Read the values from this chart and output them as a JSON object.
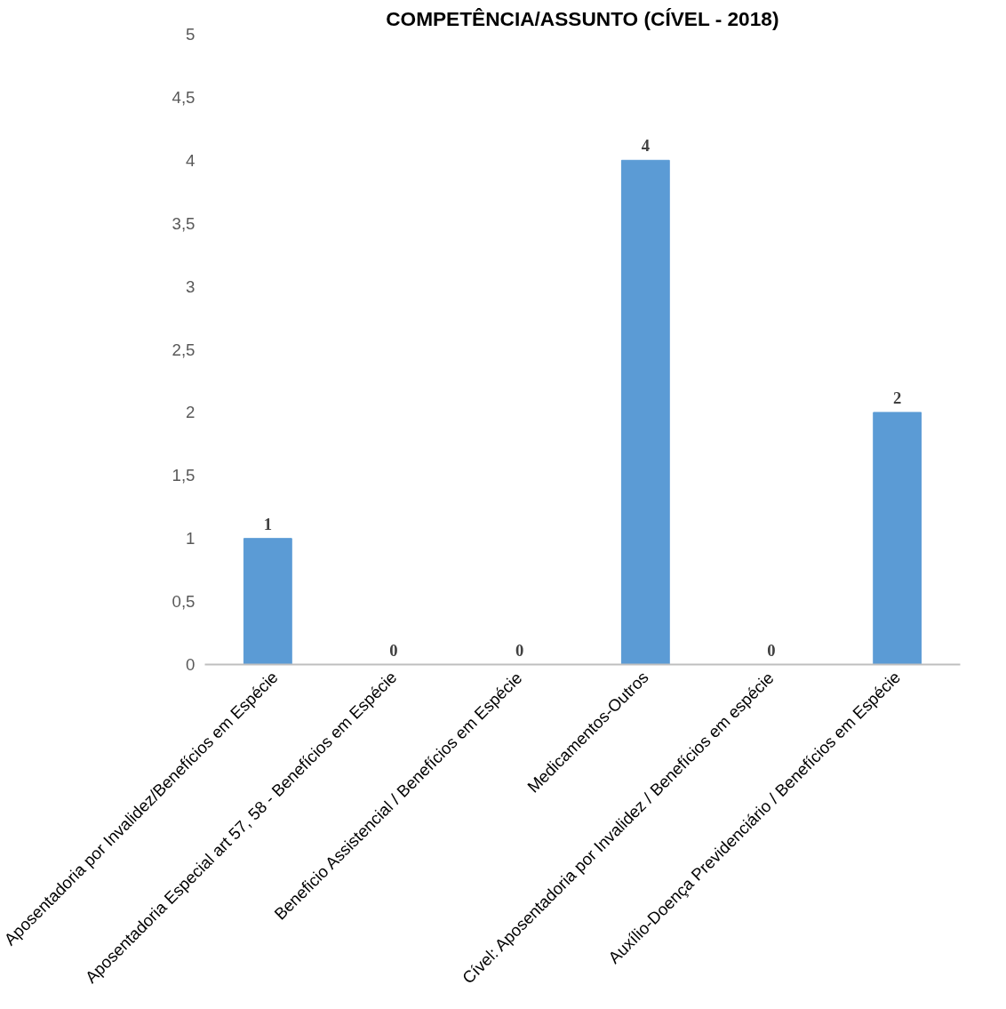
{
  "chart_data": {
    "type": "bar",
    "title": "COMPETÊNCIA/ASSUNTO (CÍVEL - 2018)",
    "categories": [
      "Aposentadoria por Invalidez/Benefícios em Espécie",
      "Aposentadoria Especial art 57, 58 - Benefícios em Espécie",
      "Beneficio Assistencial / Benefícios em Espécie",
      "Medicamentos-Outros",
      "Cível: Aposentadoria por Invalidez / Benefícios em espécie",
      "Auxílio-Doença Previdenciário / Benefícios em Espécie"
    ],
    "values": [
      1,
      0,
      0,
      4,
      0,
      2
    ],
    "color": "#5b9bd5",
    "ylim": [
      0,
      5
    ],
    "yticks": [
      0,
      {
        "value": 0.5,
        "label": "0,5"
      },
      1,
      {
        "value": 1.5,
        "label": "1,5"
      },
      2,
      {
        "value": 2.5,
        "label": "2,5"
      },
      3,
      {
        "value": 3.5,
        "label": "3,5"
      },
      4,
      {
        "value": 4.5,
        "label": "4,5"
      },
      5
    ],
    "grid": false,
    "data_labels": true
  }
}
